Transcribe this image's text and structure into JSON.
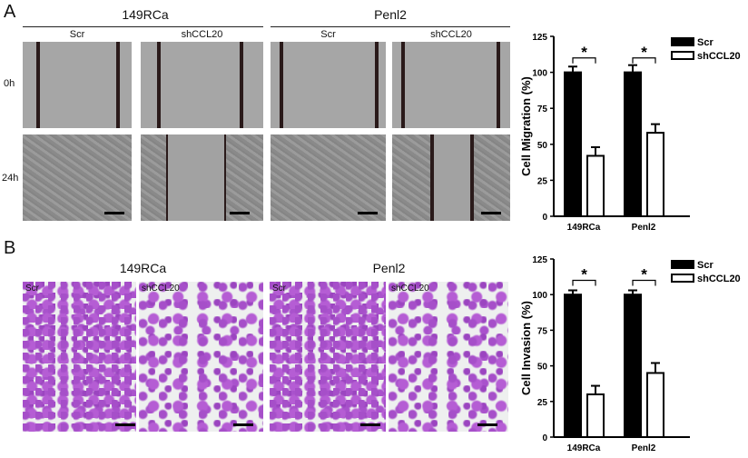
{
  "panels": {
    "A": {
      "label": "A",
      "groups": [
        "149RCa",
        "Penl2"
      ],
      "conditions": [
        "Scr",
        "shCCL20",
        "Scr",
        "shCCL20"
      ],
      "rows": [
        "0h",
        "24h"
      ]
    },
    "B": {
      "label": "B",
      "groups": [
        "149RCa",
        "Penl2"
      ],
      "conditions": [
        "Scr",
        "shCCL20",
        "Scr",
        "shCCL20"
      ]
    }
  },
  "chart_data": [
    {
      "type": "bar",
      "ylabel": "Cell Migration (%)",
      "categories": [
        "149RCa",
        "Penl2"
      ],
      "ylim": [
        0,
        125
      ],
      "yticks": [
        0,
        25,
        50,
        75,
        100,
        125
      ],
      "legend_position": "top-right",
      "colors": {
        "Scr": "#000000",
        "shCCL20": "#ffffff"
      },
      "series": [
        {
          "name": "Scr",
          "values": [
            100,
            100
          ],
          "errors": [
            4,
            5
          ]
        },
        {
          "name": "shCCL20",
          "values": [
            42,
            58
          ],
          "errors": [
            6,
            6
          ]
        }
      ],
      "annotations": [
        "*",
        "*"
      ]
    },
    {
      "type": "bar",
      "ylabel": "Cell Invasion (%)",
      "categories": [
        "149RCa",
        "Penl2"
      ],
      "ylim": [
        0,
        125
      ],
      "yticks": [
        0,
        25,
        50,
        75,
        100,
        125
      ],
      "legend_position": "top-right",
      "colors": {
        "Scr": "#000000",
        "shCCL20": "#ffffff"
      },
      "series": [
        {
          "name": "Scr",
          "values": [
            100,
            100
          ],
          "errors": [
            3,
            3
          ]
        },
        {
          "name": "shCCL20",
          "values": [
            30,
            45
          ],
          "errors": [
            6,
            7
          ]
        }
      ],
      "annotations": [
        "*",
        "*"
      ]
    }
  ]
}
